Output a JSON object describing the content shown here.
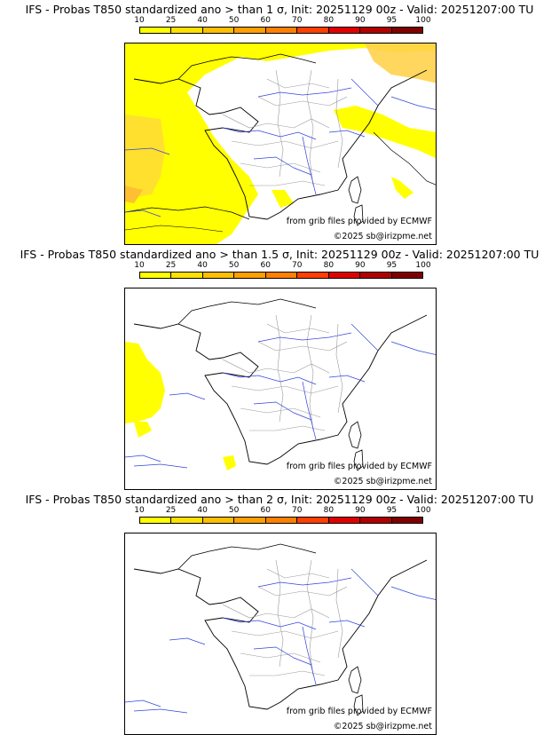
{
  "colorbar": {
    "ticks": [
      "10",
      "25",
      "40",
      "50",
      "60",
      "70",
      "80",
      "90",
      "95",
      "100"
    ],
    "colors": [
      "#ffff00",
      "#ffe000",
      "#ffbf00",
      "#ff9f00",
      "#ff8000",
      "#ff4000",
      "#e00000",
      "#b00000",
      "#800000"
    ]
  },
  "credits": {
    "source": "from grib files provided by ECMWF",
    "copyright": "©2025 sb@irizpme.net"
  },
  "panels": [
    {
      "title": "IFS - Probas T850  standardized ano > than 1 σ, Init: 20251129 00z - Valid: 20251207:00 TU",
      "threshold_sigma": 1
    },
    {
      "title": "IFS - Probas T850  standardized ano > than 1.5 σ, Init: 20251129 00z - Valid: 20251207:00 TU",
      "threshold_sigma": 1.5
    },
    {
      "title": "IFS - Probas T850  standardized ano > than 2 σ, Init: 20251129 00z - Valid: 20251207:00 TU",
      "threshold_sigma": 2
    }
  ]
}
